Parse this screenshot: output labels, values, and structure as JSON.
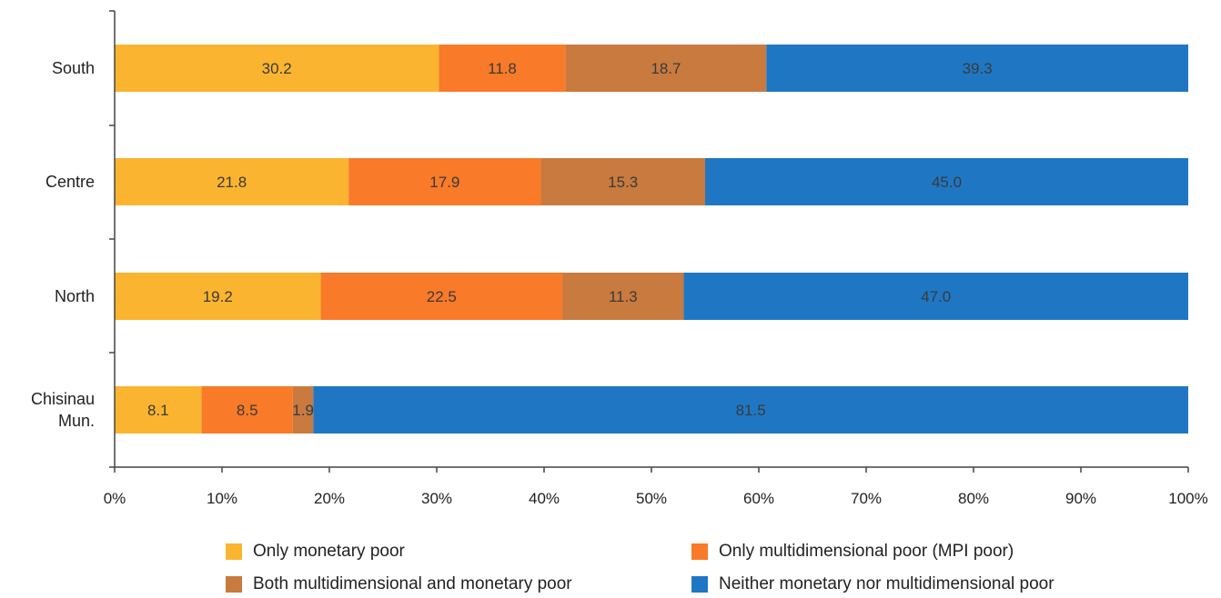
{
  "chart_data": {
    "type": "bar",
    "orientation": "horizontal",
    "stacked": true,
    "percent_stacked": true,
    "categories": [
      "South",
      "Centre",
      "North",
      "Chisinau Mun."
    ],
    "category_display_lines": [
      [
        "South"
      ],
      [
        "Centre"
      ],
      [
        "North"
      ],
      [
        "Chisinau",
        "Mun."
      ]
    ],
    "series": [
      {
        "name": "Only monetary poor",
        "color": "#FBB42F",
        "values": [
          30.2,
          21.8,
          19.2,
          8.1
        ]
      },
      {
        "name": "Only multidimensional poor (MPI poor)",
        "color": "#F97A28",
        "values": [
          11.8,
          17.9,
          22.5,
          8.5
        ]
      },
      {
        "name": "Both multidimensional and monetary poor",
        "color": "#C97A3F",
        "values": [
          18.7,
          15.3,
          11.3,
          1.9
        ]
      },
      {
        "name": "Neither monetary nor multidimensional poor",
        "color": "#1F77C4",
        "values": [
          39.3,
          45.0,
          47.0,
          81.5
        ]
      }
    ],
    "value_labels": [
      [
        "30.2",
        "21.8",
        "19.2",
        "8.1"
      ],
      [
        "11.8",
        "17.9",
        "22.5",
        "8.5"
      ],
      [
        "18.7",
        "15.3",
        "11.3",
        "1.9"
      ],
      [
        "39.3",
        "45.0",
        "47.0",
        "81.5"
      ]
    ],
    "x_ticks": [
      "0%",
      "10%",
      "20%",
      "30%",
      "40%",
      "50%",
      "60%",
      "70%",
      "80%",
      "90%",
      "100%"
    ],
    "xlim": [
      0,
      100
    ],
    "grid": false,
    "legend_position": "bottom",
    "title": "",
    "xlabel": "",
    "ylabel": ""
  }
}
